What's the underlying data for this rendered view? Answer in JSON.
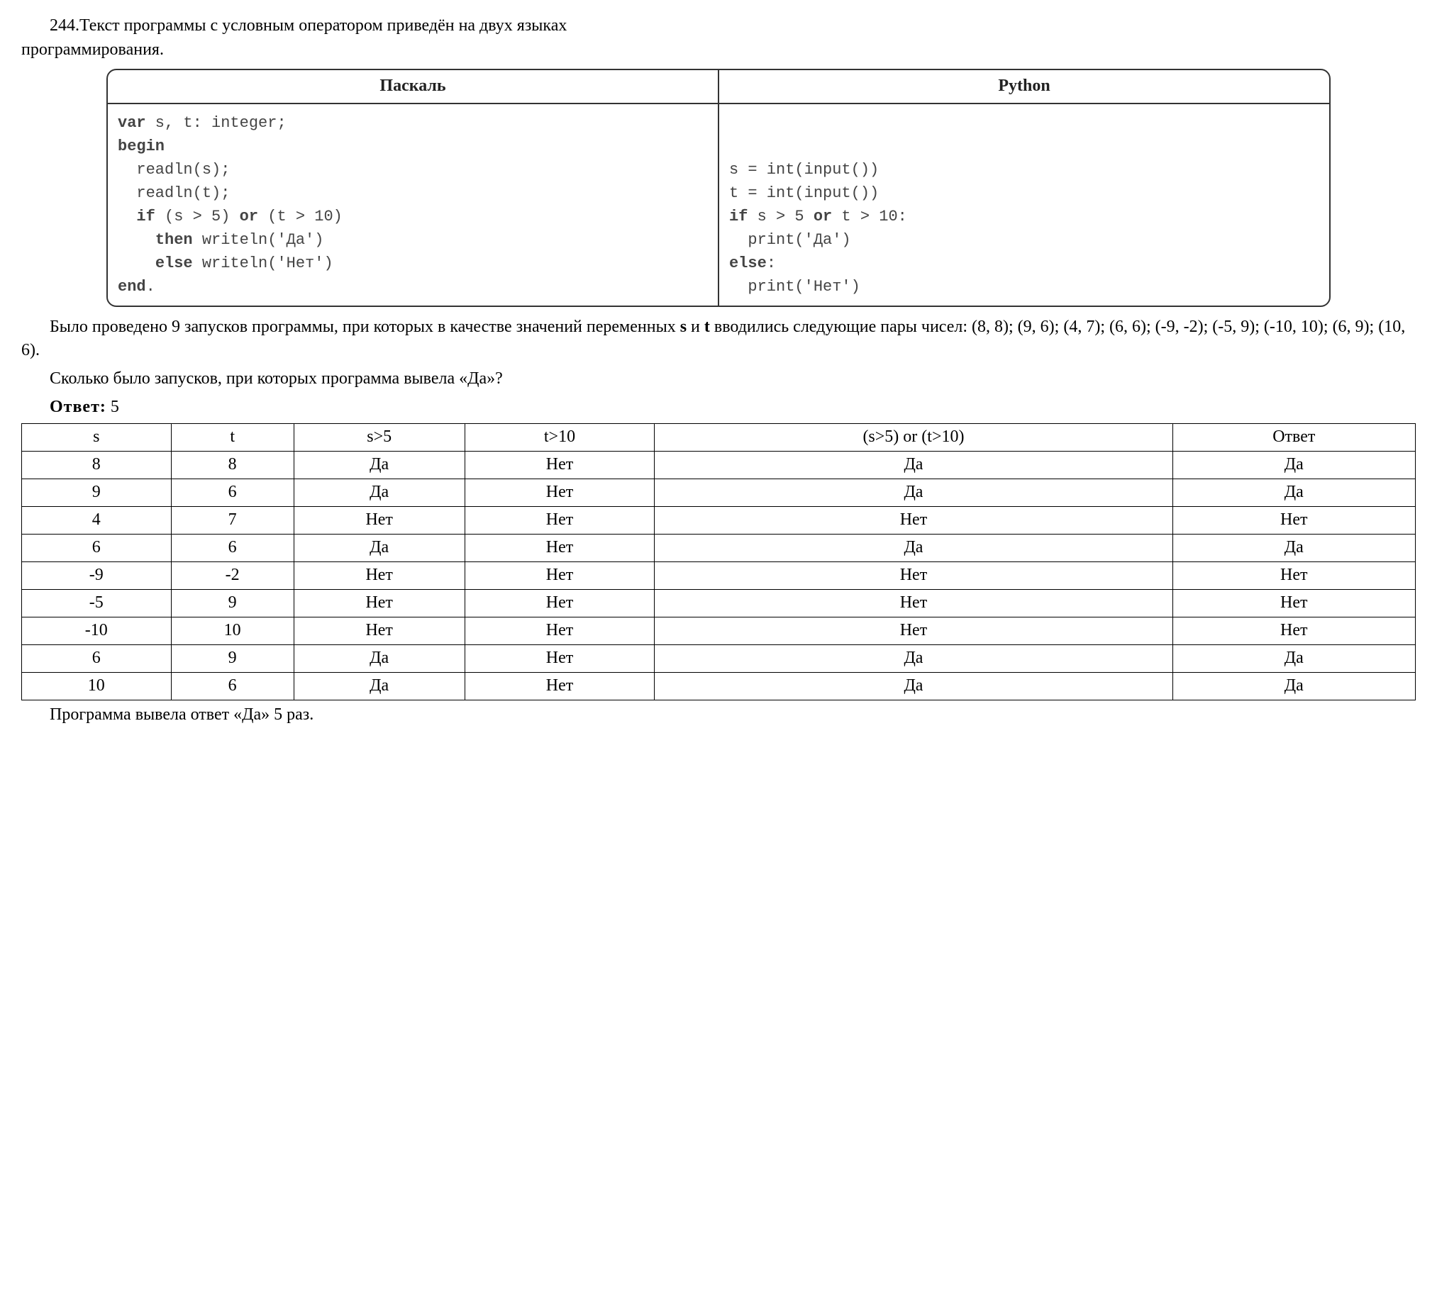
{
  "intro": {
    "number": "244.",
    "text_a": "Текст программы с условным оператором приведён на двух языках",
    "text_b": "программирования."
  },
  "codebox": {
    "header_left": "Паскаль",
    "header_right": "Python",
    "pascal": "var s, t: integer;\nbegin\n  readln(s);\n  readln(t);\n  if (s > 5) or (t > 10)\n    then writeln('Да')\n    else writeln('Нет')\nend.",
    "python": "\n\ns = int(input())\nt = int(input())\nif s > 5 or t > 10:\n  print('Да')\nelse:\n  print('Нет')"
  },
  "body": {
    "p1": "Было проведено 9 запусков программы, при которых в качестве значений переменных ",
    "p1_bold1": "s",
    "p1_mid": " и ",
    "p1_bold2": "t",
    "p1_tail": " вводились следующие пары чисел: (8, 8); (9, 6); (4, 7); (6, 6); (-9, -2); (-5, 9); (-10, 10); (6, 9); (10, 6).",
    "p2": "Сколько было запусков, при которых программа вывела «Да»?",
    "answer_label": "Ответ:",
    "answer_value": "5"
  },
  "table": {
    "columns": [
      "s",
      "t",
      "s>5",
      "t>10",
      "(s>5) or (t>10)",
      "Ответ"
    ],
    "rows": [
      [
        "8",
        "8",
        "Да",
        "Нет",
        "Да",
        "Да"
      ],
      [
        "9",
        "6",
        "Да",
        "Нет",
        "Да",
        "Да"
      ],
      [
        "4",
        "7",
        "Нет",
        "Нет",
        "Нет",
        "Нет"
      ],
      [
        "6",
        "6",
        "Да",
        "Нет",
        "Да",
        "Да"
      ],
      [
        "-9",
        "-2",
        "Нет",
        "Нет",
        "Нет",
        "Нет"
      ],
      [
        "-5",
        "9",
        "Нет",
        "Нет",
        "Нет",
        "Нет"
      ],
      [
        "-10",
        "10",
        "Нет",
        "Нет",
        "Нет",
        "Нет"
      ],
      [
        "6",
        "9",
        "Да",
        "Нет",
        "Да",
        "Да"
      ],
      [
        "10",
        "6",
        "Да",
        "Нет",
        "Да",
        "Да"
      ]
    ]
  },
  "conclusion": "Программа вывела ответ «Да» 5 раз.",
  "style": {
    "font_family": "Times New Roman",
    "code_font_family": "Courier New",
    "background": "#ffffff",
    "text_color": "#000000",
    "code_text_color": "#444444",
    "border_color": "#333333",
    "table_border_color": "#000000",
    "body_fontsize": 24,
    "code_fontsize": 22,
    "border_radius": 14
  }
}
